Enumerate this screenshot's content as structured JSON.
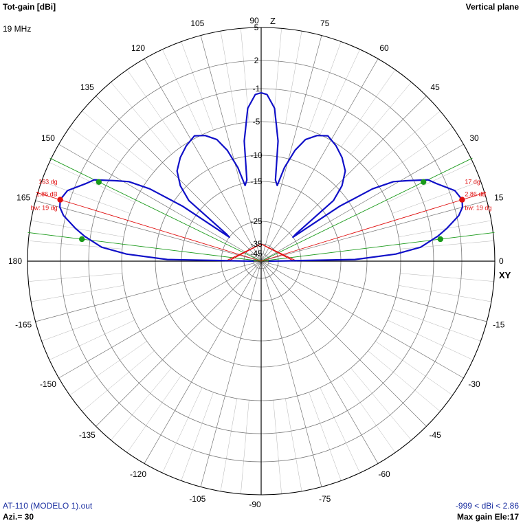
{
  "header": {
    "title": "Tot-gain [dBi]",
    "frequency": "19 MHz",
    "plane": "Vertical plane"
  },
  "footer": {
    "file": "AT-110 (MODELO 1).out",
    "azimuth": "Azi.= 30",
    "range": "-999 < dBi < 2.86",
    "max_gain": "Max gain Ele:17"
  },
  "colors": {
    "pattern": "#1010c8",
    "grid": "#777777",
    "green": "#1a9a1a",
    "red": "#e01010"
  },
  "chart_data": {
    "type": "polar",
    "plane": "Vertical plane",
    "unit": "dBi",
    "angle_labels": [
      {
        "angle": 0,
        "text": "0"
      },
      {
        "angle": 15,
        "text": "15"
      },
      {
        "angle": 30,
        "text": "30"
      },
      {
        "angle": 45,
        "text": "45"
      },
      {
        "angle": 60,
        "text": "60"
      },
      {
        "angle": 75,
        "text": "75"
      },
      {
        "angle": 90,
        "text": "90"
      },
      {
        "angle": 105,
        "text": "105"
      },
      {
        "angle": 120,
        "text": "120"
      },
      {
        "angle": 135,
        "text": "135"
      },
      {
        "angle": 150,
        "text": "150"
      },
      {
        "angle": 165,
        "text": "165"
      },
      {
        "angle": 180,
        "text": "180"
      },
      {
        "angle": -15,
        "text": "-15"
      },
      {
        "angle": -30,
        "text": "-30"
      },
      {
        "angle": -45,
        "text": "-45"
      },
      {
        "angle": -60,
        "text": "-60"
      },
      {
        "angle": -75,
        "text": "-75"
      },
      {
        "angle": -90,
        "text": "-90"
      },
      {
        "angle": -105,
        "text": "-105"
      },
      {
        "angle": -120,
        "text": "-120"
      },
      {
        "angle": -135,
        "text": "-135"
      },
      {
        "angle": -150,
        "text": "-150"
      },
      {
        "angle": -165,
        "text": "-165"
      }
    ],
    "axis_labels": {
      "vertical": "Z",
      "horizontal": "XY"
    },
    "ring_labels": [
      {
        "db": 5,
        "text": "5"
      },
      {
        "db": 2,
        "text": "2"
      },
      {
        "db": -1,
        "text": "-1"
      },
      {
        "db": -5,
        "text": "-5"
      },
      {
        "db": -10,
        "text": "-10"
      },
      {
        "db": -15,
        "text": "-15"
      },
      {
        "db": -25,
        "text": "-25"
      },
      {
        "db": -35,
        "text": "-35"
      },
      {
        "db": -45,
        "text": "-45"
      }
    ],
    "ring_levels_db": [
      5,
      2,
      -1,
      -5,
      -10,
      -15,
      -25,
      -35,
      -45,
      -60
    ],
    "max_gain_dbi": 2.86,
    "pattern": [
      {
        "angle": 0,
        "gain": -45
      },
      {
        "angle": 1,
        "gain": -12.3
      },
      {
        "angle": 3,
        "gain": -5.7
      },
      {
        "angle": 5,
        "gain": -2.5
      },
      {
        "angle": 8,
        "gain": -0.4
      },
      {
        "angle": 10,
        "gain": 0.7
      },
      {
        "angle": 13,
        "gain": 2.2
      },
      {
        "angle": 15,
        "gain": 2.7
      },
      {
        "angle": 17,
        "gain": 2.86
      },
      {
        "angle": 20,
        "gain": 2.5
      },
      {
        "angle": 24,
        "gain": 1.0
      },
      {
        "angle": 26,
        "gain": 0.4
      },
      {
        "angle": 29,
        "gain": -1.8
      },
      {
        "angle": 31,
        "gain": -3.2
      },
      {
        "angle": 33,
        "gain": -6.0
      },
      {
        "angle": 35,
        "gain": -12.0
      },
      {
        "angle": 37,
        "gain": -25
      },
      {
        "angle": 38,
        "gain": -24
      },
      {
        "angle": 40,
        "gain": -12.2
      },
      {
        "angle": 43,
        "gain": -9.3
      },
      {
        "angle": 47,
        "gain": -7.4
      },
      {
        "angle": 52,
        "gain": -6.2
      },
      {
        "angle": 57,
        "gain": -5.3
      },
      {
        "angle": 62,
        "gain": -4.7
      },
      {
        "angle": 66,
        "gain": -5.3
      },
      {
        "angle": 70,
        "gain": -6.5
      },
      {
        "angle": 73,
        "gain": -8.5
      },
      {
        "angle": 76,
        "gain": -11.8
      },
      {
        "angle": 78,
        "gain": -15.6
      },
      {
        "angle": 80,
        "gain": -14.5
      },
      {
        "angle": 82,
        "gain": -7.7
      },
      {
        "angle": 85,
        "gain": -3.3
      },
      {
        "angle": 88,
        "gain": -1.7
      },
      {
        "angle": 90,
        "gain": -1.5
      },
      {
        "angle": 92,
        "gain": -1.7
      },
      {
        "angle": 95,
        "gain": -3.3
      },
      {
        "angle": 98,
        "gain": -7.7
      },
      {
        "angle": 100,
        "gain": -14.5
      },
      {
        "angle": 102,
        "gain": -15.6
      },
      {
        "angle": 104,
        "gain": -11.8
      },
      {
        "angle": 107,
        "gain": -8.5
      },
      {
        "angle": 110,
        "gain": -6.5
      },
      {
        "angle": 114,
        "gain": -5.3
      },
      {
        "angle": 118,
        "gain": -4.7
      },
      {
        "angle": 123,
        "gain": -5.3
      },
      {
        "angle": 128,
        "gain": -6.2
      },
      {
        "angle": 133,
        "gain": -7.4
      },
      {
        "angle": 137,
        "gain": -9.3
      },
      {
        "angle": 140,
        "gain": -12.2
      },
      {
        "angle": 142,
        "gain": -24
      },
      {
        "angle": 143,
        "gain": -25
      },
      {
        "angle": 145,
        "gain": -12.0
      },
      {
        "angle": 147,
        "gain": -6.0
      },
      {
        "angle": 149,
        "gain": -3.2
      },
      {
        "angle": 151,
        "gain": -1.8
      },
      {
        "angle": 154,
        "gain": 0.4
      },
      {
        "angle": 156,
        "gain": 1.0
      },
      {
        "angle": 160,
        "gain": 2.5
      },
      {
        "angle": 163,
        "gain": 2.86
      },
      {
        "angle": 165,
        "gain": 2.7
      },
      {
        "angle": 167,
        "gain": 2.2
      },
      {
        "angle": 170,
        "gain": 0.7
      },
      {
        "angle": 172,
        "gain": -0.4
      },
      {
        "angle": 175,
        "gain": -2.5
      },
      {
        "angle": 177,
        "gain": -5.7
      },
      {
        "angle": 179,
        "gain": -12.3
      },
      {
        "angle": 180,
        "gain": -45
      }
    ],
    "beamwidth_markers": [
      {
        "angle": 26,
        "gain": -0.14
      },
      {
        "angle": 7,
        "gain": -0.14
      },
      {
        "angle": 154,
        "gain": -0.14
      },
      {
        "angle": 173,
        "gain": -0.14
      }
    ],
    "max_markers": [
      {
        "angle": 17,
        "gain": 2.86,
        "labels": [
          "17 dg",
          "2.86 dB",
          "bw: 19 dg"
        ],
        "side": "right"
      },
      {
        "angle": 163,
        "gain": 2.86,
        "labels": [
          "163 dg",
          "2.86 dB",
          "bw: 19 dg"
        ],
        "side": "left"
      }
    ],
    "scale_triangle_db": -35
  }
}
